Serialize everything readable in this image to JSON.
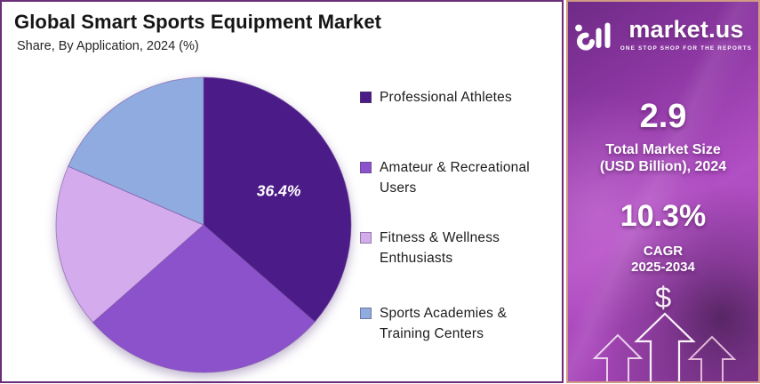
{
  "header": {
    "title": "Global Smart Sports Equipment Market",
    "subtitle": "Share, By Application, 2024 (%)"
  },
  "chart_data": {
    "type": "pie",
    "title": "Global Smart Sports Equipment Market",
    "subtitle": "Share, By Application, 2024 (%)",
    "unit": "% share",
    "start_angle_deg": 0,
    "direction": "clockwise",
    "legend_position": "right",
    "slices": [
      {
        "label": "Professional Athletes",
        "value": 36.4,
        "data_label": "36.4%",
        "color": "#4b1b87"
      },
      {
        "label": "Amateur & Recreational Users",
        "value": 27.1,
        "data_label": "",
        "color": "#8c52cc"
      },
      {
        "label": "Fitness & Wellness Enthusiasts",
        "value": 18.0,
        "data_label": "",
        "color": "#d4abec"
      },
      {
        "label": "Sports Academies & Training Centers",
        "value": 18.5,
        "data_label": "",
        "color": "#8fabdf"
      }
    ]
  },
  "side_panel": {
    "brand": "market.us",
    "tagline": "ONE STOP SHOP FOR THE REPORTS",
    "market_size": {
      "value": "2.9",
      "label_line1": "Total Market Size",
      "label_line2": "(USD Billion), 2024"
    },
    "cagr": {
      "value": "10.3%",
      "label_line1": "CAGR",
      "label_line2": "2025-2034"
    },
    "dollar": "$"
  },
  "colors": {
    "card_border": "#6b2d79",
    "panel_border": "#d09a85",
    "panel_accent": "#b14fc4",
    "slice_stroke": "rgba(120,80,160,0.55)"
  }
}
